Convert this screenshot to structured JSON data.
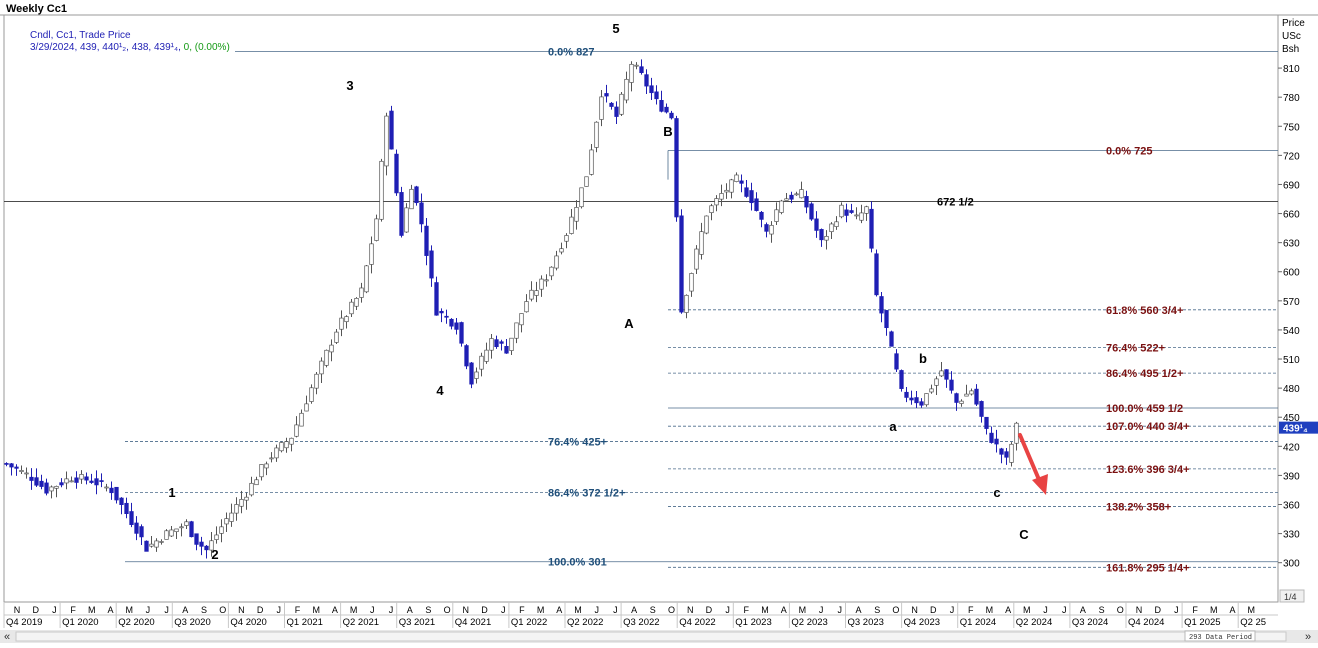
{
  "window": {
    "title": "Weekly Cc1"
  },
  "legend": {
    "line1": "Cndl, Cc1, Trade Price",
    "line2_black": "3/29/2024, 439, 440¹₂, 438, 439¹₄, ",
    "line2_green": "0, (0.00%)"
  },
  "axis_header": {
    "line1": "Price",
    "line2": "USc",
    "line3": "Bsh"
  },
  "current_price_tag": "439¹₄",
  "status": {
    "data_period": "293 Data Period",
    "page": "1/4"
  },
  "nav": {
    "left_arrows": "«",
    "right_arrows": "»"
  },
  "colors": {
    "bull_candle": "#ffffff",
    "bear_candle": "#1f1fb4",
    "fib_text_dark_red": "#7a1010",
    "fib_text_blue": "#1f4f7a",
    "arrow": "#e84343",
    "price_tag_bg": "#1f3fbf"
  },
  "chart_data": {
    "type": "candlestick",
    "title": "Weekly Cc1",
    "ylabel": "Price USc Bsh",
    "ylim": [
      285,
      840
    ],
    "yticks": [
      300,
      330,
      360,
      390,
      420,
      450,
      480,
      510,
      540,
      570,
      600,
      630,
      660,
      690,
      720,
      750,
      780,
      810
    ],
    "month_ticks": [
      "N",
      "D",
      "J",
      "F",
      "M",
      "A",
      "M",
      "J",
      "J",
      "A",
      "S",
      "O",
      "N",
      "D",
      "J",
      "F",
      "M",
      "A",
      "M",
      "J",
      "J",
      "A",
      "S",
      "O",
      "N",
      "D",
      "J",
      "F",
      "M",
      "A",
      "M",
      "J",
      "J",
      "A",
      "S",
      "O",
      "N",
      "D",
      "J",
      "F",
      "M",
      "A",
      "M",
      "J",
      "J",
      "A",
      "S",
      "O",
      "N",
      "D",
      "J",
      "F",
      "M",
      "A",
      "M",
      "J",
      "J",
      "A",
      "S",
      "O",
      "N",
      "D",
      "J",
      "F",
      "M",
      "A",
      "M"
    ],
    "quarter_labels": [
      "Q4 2019",
      "Q1 2020",
      "Q2 2020",
      "Q3 2020",
      "Q4 2020",
      "Q1 2021",
      "Q2 2021",
      "Q3 2021",
      "Q4 2021",
      "Q1 2022",
      "Q2 2022",
      "Q3 2022",
      "Q4 2022",
      "Q1 2023",
      "Q2 2023",
      "Q3 2023",
      "Q4 2023",
      "Q1 2024",
      "Q2 2024",
      "Q3 2024",
      "Q4 2024",
      "Q1 2025",
      "Q2 25"
    ],
    "candle_anchors_close": [
      [
        0,
        402
      ],
      [
        5,
        388
      ],
      [
        8,
        375
      ],
      [
        13,
        388
      ],
      [
        17,
        385
      ],
      [
        21,
        375
      ],
      [
        26,
        335
      ],
      [
        28,
        315
      ],
      [
        32,
        330
      ],
      [
        36,
        340
      ],
      [
        38,
        322
      ],
      [
        40,
        313
      ],
      [
        44,
        345
      ],
      [
        48,
        372
      ],
      [
        52,
        405
      ],
      [
        57,
        430
      ],
      [
        61,
        480
      ],
      [
        66,
        540
      ],
      [
        71,
        580
      ],
      [
        74,
        655
      ],
      [
        76,
        765
      ],
      [
        79,
        640
      ],
      [
        81,
        690
      ],
      [
        83,
        650
      ],
      [
        86,
        560
      ],
      [
        90,
        545
      ],
      [
        93,
        488
      ],
      [
        97,
        530
      ],
      [
        100,
        520
      ],
      [
        104,
        570
      ],
      [
        108,
        595
      ],
      [
        112,
        640
      ],
      [
        116,
        700
      ],
      [
        119,
        785
      ],
      [
        122,
        760
      ],
      [
        125,
        815
      ],
      [
        127,
        802
      ],
      [
        130,
        775
      ],
      [
        133,
        760
      ],
      [
        135,
        560
      ],
      [
        137,
        600
      ],
      [
        140,
        660
      ],
      [
        143,
        680
      ],
      [
        146,
        695
      ],
      [
        149,
        675
      ],
      [
        152,
        640
      ],
      [
        155,
        675
      ],
      [
        159,
        680
      ],
      [
        163,
        630
      ],
      [
        167,
        665
      ],
      [
        170,
        655
      ],
      [
        172,
        665
      ],
      [
        174,
        575
      ],
      [
        176,
        540
      ],
      [
        179,
        475
      ],
      [
        183,
        465
      ],
      [
        187,
        498
      ],
      [
        190,
        465
      ],
      [
        193,
        478
      ],
      [
        196,
        435
      ],
      [
        198,
        420
      ],
      [
        200,
        405
      ],
      [
        202,
        440
      ]
    ],
    "fib_levels": [
      {
        "label": "0.0%",
        "value": "827",
        "price": 827
      },
      {
        "label": "0.0%",
        "value": "725",
        "price": 725
      },
      {
        "label": "",
        "value": "672 1/2",
        "price": 672.5
      },
      {
        "label": "61.8%",
        "value": "560 3/4+",
        "price": 560.75
      },
      {
        "label": "76.4%",
        "value": "522+",
        "price": 522
      },
      {
        "label": "86.4%",
        "value": "495 1/2+",
        "price": 495.5
      },
      {
        "label": "100.0%",
        "value": "459 1/2",
        "price": 459.5
      },
      {
        "label": "107.0%",
        "value": "440 3/4+",
        "price": 440.75
      },
      {
        "label": "76.4%",
        "value": "425+",
        "price": 425
      },
      {
        "label": "123.6%",
        "value": "396 3/4+",
        "price": 396.75
      },
      {
        "label": "86.4%",
        "value": "372 1/2+",
        "price": 372.5
      },
      {
        "label": "138.2%",
        "value": "358+",
        "price": 358
      },
      {
        "label": "100.0%",
        "value": "301",
        "price": 301
      },
      {
        "label": "161.8%",
        "value": "295 1/4+",
        "price": 295.25
      }
    ],
    "wave_labels": [
      "1",
      "2",
      "3",
      "4",
      "5",
      "A",
      "B",
      "a",
      "b",
      "c",
      "C"
    ],
    "last_bar": {
      "date": "3/29/2024",
      "open": "439",
      "high": "440 1/2",
      "low": "438",
      "close": "439 1/4",
      "change": "0",
      "change_pct": "0.00%"
    },
    "grid": false,
    "legend_position": "top-left"
  }
}
